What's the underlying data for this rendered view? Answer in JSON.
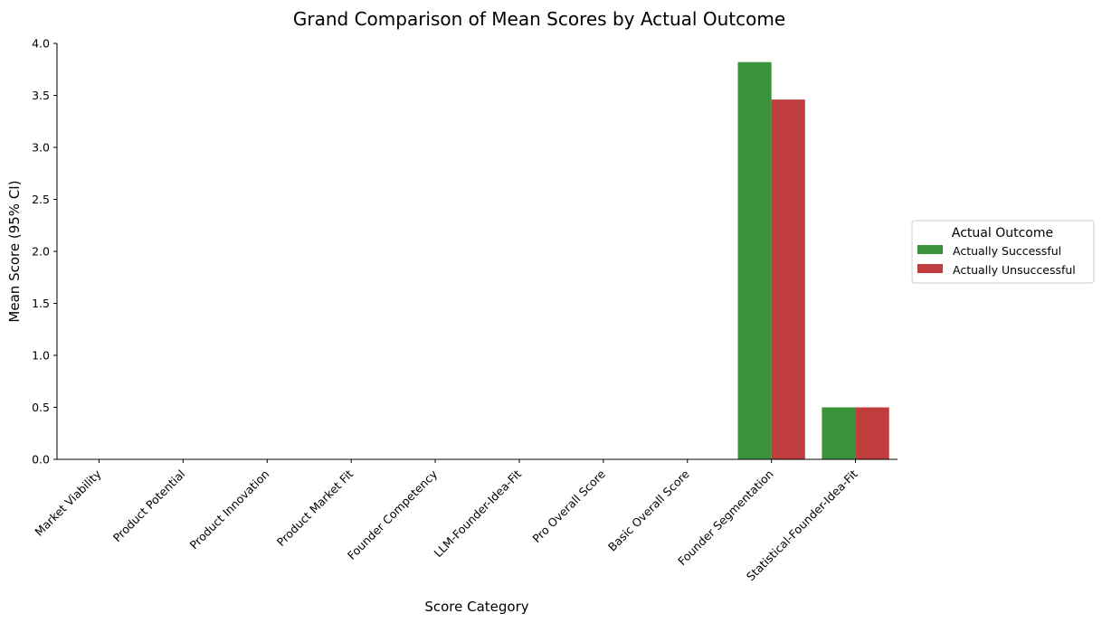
{
  "chart_data": {
    "type": "bar",
    "title": "Grand Comparison of Mean Scores by Actual Outcome",
    "xlabel": "Score Category",
    "ylabel": "Mean Score (95% CI)",
    "ylim": [
      0,
      4.0
    ],
    "yticks": [
      "0.0",
      "0.5",
      "1.0",
      "1.5",
      "2.0",
      "2.5",
      "3.0",
      "3.5",
      "4.0"
    ],
    "grid": false,
    "categories": [
      "Market Viability",
      "Product Potential",
      "Product Innovation",
      "Product Market Fit",
      "Founder Competency",
      "LLM-Founder-Idea-Fit",
      "Pro Overall Score",
      "Basic Overall Score",
      "Founder Segmentation",
      "Statistical-Founder-Idea-Fit"
    ],
    "series": [
      {
        "name": "Actually Successful",
        "color": "#3a923a",
        "values": [
          0,
          0,
          0,
          0,
          0,
          0,
          0,
          0,
          3.82,
          0.5
        ]
      },
      {
        "name": "Actually Unsuccessful",
        "color": "#c03d3e",
        "values": [
          0,
          0,
          0,
          0,
          0,
          0,
          0,
          0,
          3.46,
          0.5
        ]
      }
    ],
    "legend": {
      "title": "Actual Outcome",
      "placement": "outside-right"
    }
  }
}
